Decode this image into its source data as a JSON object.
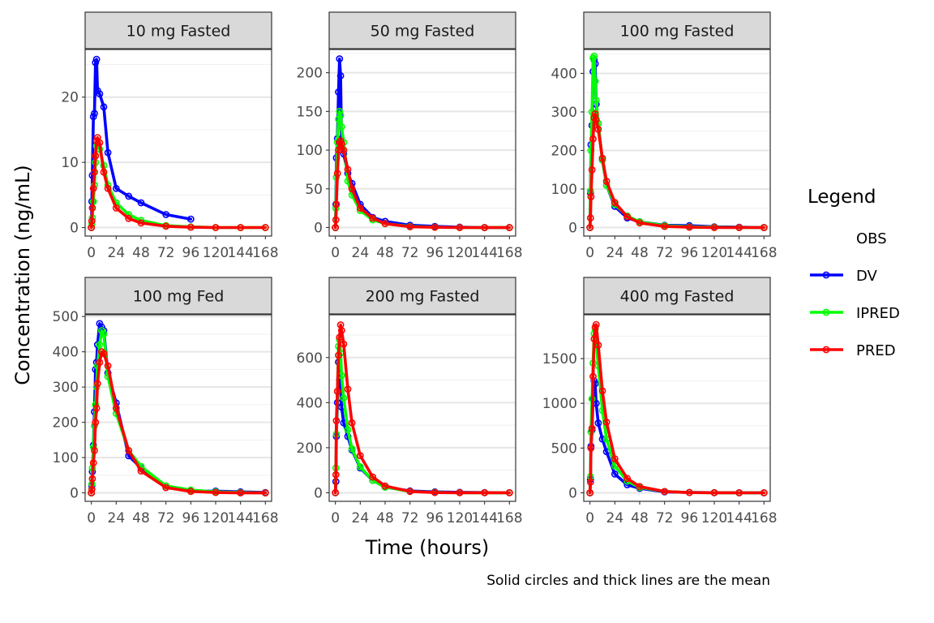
{
  "chart_data": {
    "type": "line",
    "xlabel": "Time (hours)",
    "ylabel": "Concentration (ng/mL)",
    "caption": "Solid circles and thick lines are the mean",
    "x_ticks": [
      "0",
      "24",
      "48",
      "72",
      "96",
      "120",
      "144",
      "168"
    ],
    "xlim": [
      -6,
      174
    ],
    "grid": "horizontal major lines",
    "legend": {
      "title": "Legend",
      "position": "right",
      "entries": [
        {
          "name": "OBS",
          "color": ""
        },
        {
          "name": "DV",
          "color": "#0000ff"
        },
        {
          "name": "IPRED",
          "color": "#00ff00"
        },
        {
          "name": "PRED",
          "color": "#ff0000"
        }
      ]
    },
    "panels": [
      {
        "title": "10 mg Fasted",
        "ylim": [
          -1.3,
          27.3
        ],
        "y_ticks": [
          0,
          10,
          20
        ],
        "series": [
          {
            "name": "DV",
            "color": "#0000ff",
            "x": [
              0,
              0.5,
              1,
              2,
              3,
              4,
              5,
              6,
              8,
              12,
              16,
              24,
              36,
              48,
              72,
              96
            ],
            "y": [
              0,
              4,
              8,
              17,
              17.5,
              25.3,
              25.8,
              21,
              20.5,
              18.5,
              11.5,
              6,
              4.8,
              3.8,
              2,
              1.3
            ]
          },
          {
            "name": "IPRED",
            "color": "#00ff00",
            "x": [
              0,
              0.5,
              1,
              2,
              3,
              4,
              5,
              6,
              8,
              12,
              16,
              24,
              36,
              48,
              72,
              96,
              120,
              144,
              168
            ],
            "y": [
              0,
              0.5,
              1.5,
              4,
              6.5,
              10,
              12.5,
              12.8,
              12,
              9.5,
              6.5,
              3.8,
              2,
              1.1,
              0.3,
              0.1,
              0,
              0,
              0
            ]
          },
          {
            "name": "PRED",
            "color": "#ff0000",
            "x": [
              0,
              0.5,
              1,
              2,
              3,
              4,
              5,
              6,
              8,
              12,
              16,
              24,
              36,
              48,
              72,
              96,
              120,
              144,
              168
            ],
            "y": [
              0,
              1,
              3,
              6,
              8.5,
              11,
              13.3,
              13.8,
              13,
              8.5,
              6,
              3,
              1.4,
              0.7,
              0.2,
              0.05,
              0,
              0,
              0
            ]
          }
        ]
      },
      {
        "title": "50 mg Fasted",
        "ylim": [
          -11,
          230
        ],
        "y_ticks": [
          0,
          50,
          100,
          150,
          200
        ],
        "series": [
          {
            "name": "DV",
            "color": "#0000ff",
            "x": [
              0,
              0.5,
              1,
              2,
              3,
              4,
              5,
              6,
              8,
              12,
              16,
              24,
              36,
              48,
              72,
              96,
              120,
              144,
              168
            ],
            "y": [
              0,
              30,
              90,
              115,
              175,
              218,
              196,
              110,
              95,
              70,
              57,
              30,
              13,
              8,
              3,
              1.5,
              0.5,
              0,
              0
            ]
          },
          {
            "name": "IPRED",
            "color": "#00ff00",
            "x": [
              0,
              0.5,
              1,
              2,
              3,
              4,
              5,
              6,
              8,
              12,
              16,
              24,
              36,
              48,
              72,
              96,
              120,
              144,
              168
            ],
            "y": [
              0,
              25,
              65,
              110,
              140,
              150,
              145,
              130,
              110,
              60,
              42,
              22,
              10,
              5,
              1.5,
              0.5,
              0,
              0,
              0
            ]
          },
          {
            "name": "PRED",
            "color": "#ff0000",
            "x": [
              0,
              0.5,
              1,
              2,
              3,
              4,
              5,
              6,
              8,
              12,
              16,
              24,
              36,
              48,
              72,
              96,
              120,
              144,
              168
            ],
            "y": [
              0,
              10,
              30,
              70,
              100,
              110,
              112,
              108,
              100,
              75,
              50,
              25,
              12,
              5,
              1,
              0.3,
              0,
              0,
              0
            ]
          }
        ]
      },
      {
        "title": "100 mg Fasted",
        "ylim": [
          -22,
          462
        ],
        "y_ticks": [
          0,
          100,
          200,
          300,
          400
        ],
        "series": [
          {
            "name": "DV",
            "color": "#0000ff",
            "x": [
              0,
              0.5,
              1,
              2,
              3,
              4,
              5,
              6,
              8,
              12,
              16,
              24,
              36,
              48,
              72,
              96,
              120,
              144,
              168
            ],
            "y": [
              0,
              90,
              215,
              265,
              405,
              435,
              425,
              320,
              270,
              175,
              110,
              55,
              25,
              15,
              6,
              5,
              2,
              1,
              0
            ]
          },
          {
            "name": "IPRED",
            "color": "#00ff00",
            "x": [
              0,
              0.5,
              1,
              2,
              3,
              4,
              5,
              6,
              8,
              12,
              16,
              24,
              36,
              48,
              72,
              96,
              120,
              144,
              168
            ],
            "y": [
              0,
              95,
              200,
              300,
              440,
              445,
              380,
              330,
              270,
              175,
              110,
              60,
              30,
              15,
              5,
              2,
              1,
              0,
              0
            ]
          },
          {
            "name": "PRED",
            "color": "#ff0000",
            "x": [
              0,
              0.5,
              1,
              2,
              3,
              4,
              5,
              6,
              8,
              12,
              16,
              24,
              36,
              48,
              72,
              96,
              120,
              144,
              168
            ],
            "y": [
              0,
              25,
              80,
              150,
              230,
              285,
              295,
              280,
              255,
              180,
              120,
              65,
              28,
              12,
              3,
              1,
              0,
              0,
              0
            ]
          }
        ]
      },
      {
        "title": "100 mg Fed",
        "ylim": [
          -24,
          505
        ],
        "y_ticks": [
          0,
          100,
          200,
          300,
          400,
          500
        ],
        "series": [
          {
            "name": "DV",
            "color": "#0000ff",
            "x": [
              0,
              0.5,
              1,
              2,
              3,
              4,
              5,
              6,
              8,
              10,
              12,
              16,
              24,
              36,
              48,
              72,
              96,
              120,
              144,
              168
            ],
            "y": [
              0,
              20,
              60,
              135,
              230,
              350,
              370,
              420,
              480,
              470,
              460,
              340,
              255,
              105,
              70,
              15,
              5,
              5,
              3,
              1
            ]
          },
          {
            "name": "IPRED",
            "color": "#00ff00",
            "x": [
              0,
              0.5,
              1,
              2,
              3,
              4,
              5,
              6,
              8,
              10,
              12,
              16,
              24,
              36,
              48,
              72,
              96,
              120,
              144,
              168
            ],
            "y": [
              0,
              25,
              70,
              130,
              190,
              250,
              300,
              360,
              420,
              460,
              450,
              330,
              225,
              120,
              75,
              20,
              8,
              3,
              1,
              0
            ]
          },
          {
            "name": "PRED",
            "color": "#ff0000",
            "x": [
              0,
              0.5,
              1,
              2,
              3,
              4,
              5,
              6,
              8,
              10,
              12,
              16,
              24,
              36,
              48,
              72,
              96,
              120,
              144,
              168
            ],
            "y": [
              0,
              10,
              40,
              85,
              120,
              200,
              240,
              310,
              370,
              400,
              395,
              360,
              240,
              120,
              62,
              15,
              4,
              1,
              0,
              0
            ]
          }
        ]
      },
      {
        "title": "200 mg Fasted",
        "ylim": [
          -38,
          790
        ],
        "y_ticks": [
          0,
          200,
          400,
          600
        ],
        "series": [
          {
            "name": "DV",
            "color": "#0000ff",
            "x": [
              0,
              0.5,
              1,
              2,
              3,
              4,
              5,
              6,
              8,
              12,
              16,
              24,
              36,
              48,
              72,
              96,
              120,
              144,
              168
            ],
            "y": [
              0,
              50,
              250,
              400,
              580,
              500,
              470,
              380,
              310,
              250,
              190,
              110,
              55,
              25,
              8,
              4,
              2,
              1,
              0
            ]
          },
          {
            "name": "IPRED",
            "color": "#00ff00",
            "x": [
              0,
              0.5,
              1,
              2,
              3,
              4,
              5,
              6,
              8,
              12,
              16,
              24,
              36,
              48,
              72,
              96,
              120,
              144,
              168
            ],
            "y": [
              0,
              110,
              260,
              450,
              650,
              680,
              620,
              520,
              420,
              280,
              195,
              115,
              55,
              25,
              6,
              2,
              0,
              0,
              0
            ]
          },
          {
            "name": "PRED",
            "color": "#ff0000",
            "x": [
              0,
              0.5,
              1,
              2,
              3,
              4,
              5,
              6,
              8,
              12,
              16,
              24,
              36,
              48,
              72,
              96,
              120,
              144,
              168
            ],
            "y": [
              0,
              80,
              320,
              450,
              610,
              690,
              745,
              720,
              660,
              460,
              310,
              165,
              70,
              30,
              6,
              1,
              0,
              0,
              0
            ]
          }
        ]
      },
      {
        "title": "400 mg Fasted",
        "ylim": [
          -95,
          1990
        ],
        "y_ticks": [
          0,
          500,
          1000,
          1500
        ],
        "series": [
          {
            "name": "DV",
            "color": "#0000ff",
            "x": [
              0,
              0.5,
              1,
              2,
              3,
              4,
              5,
              6,
              8,
              12,
              16,
              24,
              36,
              48,
              72,
              96,
              120,
              144,
              168
            ],
            "y": [
              0,
              150,
              520,
              700,
              1050,
              1250,
              1220,
              1000,
              780,
              600,
              460,
              210,
              90,
              50,
              10,
              5,
              2,
              1,
              0
            ]
          },
          {
            "name": "IPRED",
            "color": "#00ff00",
            "x": [
              0,
              0.5,
              1,
              2,
              3,
              4,
              5,
              6,
              8,
              12,
              16,
              24,
              36,
              48,
              72,
              96,
              120,
              144,
              168
            ],
            "y": [
              0,
              180,
              680,
              1050,
              1450,
              1780,
              1830,
              1680,
              1420,
              920,
              600,
              300,
              130,
              60,
              15,
              4,
              1,
              0,
              0
            ]
          },
          {
            "name": "PRED",
            "color": "#ff0000",
            "x": [
              0,
              0.5,
              1,
              2,
              3,
              4,
              5,
              6,
              8,
              12,
              16,
              24,
              36,
              48,
              72,
              96,
              120,
              144,
              168
            ],
            "y": [
              0,
              120,
              500,
              720,
              1300,
              1720,
              1850,
              1880,
              1650,
              1140,
              790,
              380,
              160,
              70,
              15,
              3,
              1,
              0,
              0
            ]
          }
        ]
      }
    ]
  }
}
